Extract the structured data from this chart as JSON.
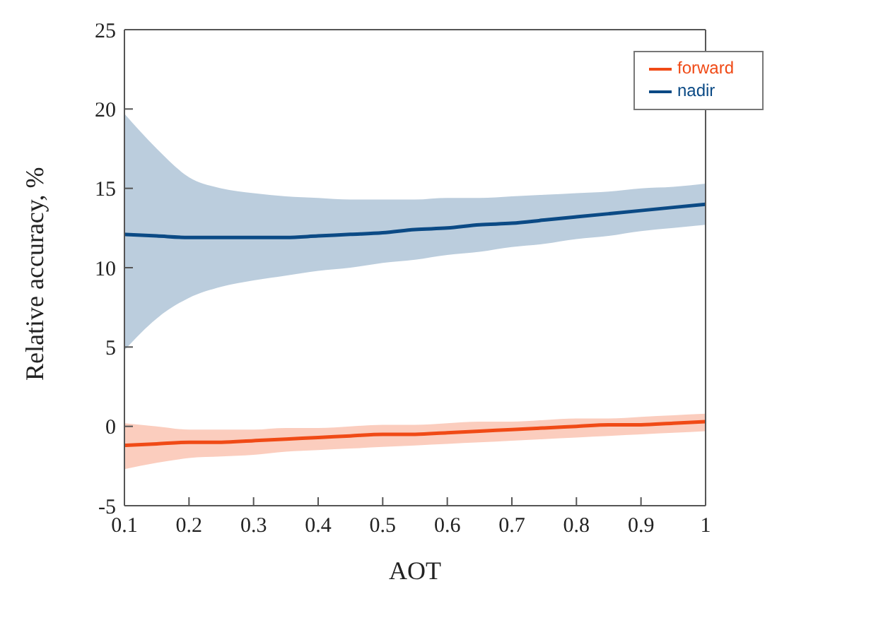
{
  "chart_data": {
    "type": "line",
    "xlabel": "AOT",
    "ylabel": "Relative accuracy, %",
    "x": [
      0.1,
      0.15,
      0.2,
      0.25,
      0.3,
      0.35,
      0.4,
      0.45,
      0.5,
      0.55,
      0.6,
      0.65,
      0.7,
      0.75,
      0.8,
      0.85,
      0.9,
      0.95,
      1
    ],
    "series": [
      {
        "name": "nadir",
        "color": "#0b4a85",
        "values": [
          12.1,
          12.0,
          11.9,
          11.9,
          11.9,
          11.9,
          12.0,
          12.1,
          12.2,
          12.4,
          12.5,
          12.7,
          12.8,
          13.0,
          13.2,
          13.4,
          13.6,
          13.8,
          14.0
        ],
        "lower": [
          4.8,
          6.8,
          8.1,
          8.8,
          9.2,
          9.5,
          9.8,
          10.0,
          10.3,
          10.5,
          10.8,
          11.0,
          11.3,
          11.5,
          11.8,
          12.0,
          12.3,
          12.5,
          12.7
        ],
        "upper": [
          19.7,
          17.5,
          15.7,
          15.0,
          14.7,
          14.5,
          14.4,
          14.3,
          14.3,
          14.3,
          14.4,
          14.4,
          14.5,
          14.6,
          14.7,
          14.8,
          15.0,
          15.1,
          15.3
        ]
      },
      {
        "name": "forward",
        "color": "#f04a16",
        "values": [
          -1.2,
          -1.1,
          -1.0,
          -1.0,
          -0.9,
          -0.8,
          -0.7,
          -0.6,
          -0.5,
          -0.5,
          -0.4,
          -0.3,
          -0.2,
          -0.1,
          0.0,
          0.1,
          0.1,
          0.2,
          0.3
        ],
        "lower": [
          -2.7,
          -2.3,
          -2.0,
          -1.9,
          -1.8,
          -1.6,
          -1.5,
          -1.4,
          -1.3,
          -1.2,
          -1.1,
          -1.0,
          -0.9,
          -0.8,
          -0.7,
          -0.6,
          -0.5,
          -0.4,
          -0.3
        ],
        "upper": [
          0.2,
          0.0,
          -0.2,
          -0.2,
          -0.2,
          -0.1,
          -0.1,
          0.0,
          0.1,
          0.1,
          0.2,
          0.3,
          0.3,
          0.4,
          0.5,
          0.5,
          0.6,
          0.7,
          0.8
        ]
      }
    ],
    "xlim": [
      0.1,
      1
    ],
    "xticks": [
      0.1,
      0.2,
      0.3,
      0.4,
      0.5,
      0.6,
      0.7,
      0.8,
      0.9,
      1
    ],
    "ylim": [
      -5,
      25
    ],
    "yticks": [
      -5,
      0,
      5,
      10,
      15,
      20,
      25
    ],
    "grid": false,
    "legend": "top right",
    "marker": "none",
    "line_style": "solid"
  }
}
